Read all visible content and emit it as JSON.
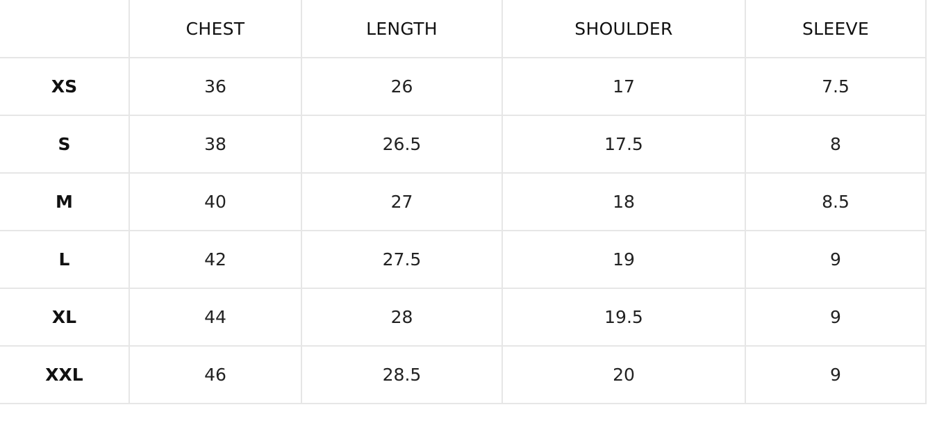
{
  "table": {
    "corner": "",
    "headers": [
      "CHEST",
      "LENGTH",
      "SHOULDER",
      "SLEEVE"
    ],
    "rows": [
      {
        "size": "XS",
        "values": [
          "36",
          "26",
          "17",
          "7.5"
        ]
      },
      {
        "size": "S",
        "values": [
          "38",
          "26.5",
          "17.5",
          "8"
        ]
      },
      {
        "size": "M",
        "values": [
          "40",
          "27",
          "18",
          "8.5"
        ]
      },
      {
        "size": "L",
        "values": [
          "42",
          "27.5",
          "19",
          "9"
        ]
      },
      {
        "size": "XL",
        "values": [
          "44",
          "28",
          "19.5",
          "9"
        ]
      },
      {
        "size": "XXL",
        "values": [
          "46",
          "28.5",
          "20",
          "9"
        ]
      }
    ]
  },
  "colors": {
    "background": "#ffffff",
    "grid_line": "#e6e6e6",
    "text": "#111111"
  }
}
